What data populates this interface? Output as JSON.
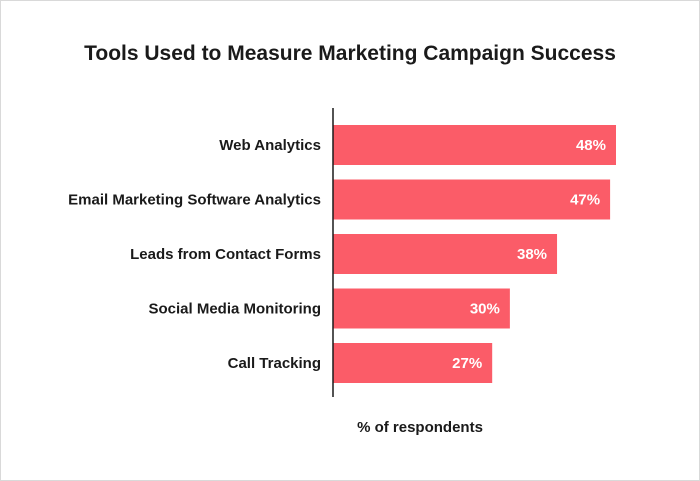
{
  "chart_data": {
    "type": "bar",
    "orientation": "horizontal",
    "title": "Tools Used to Measure Marketing Campaign Success",
    "xlabel": "% of respondents",
    "ylabel": "",
    "categories": [
      "Web Analytics",
      "Email Marketing Software Analytics",
      "Leads from Contact Forms",
      "Social Media Monitoring",
      "Call Tracking"
    ],
    "values": [
      48,
      47,
      38,
      30,
      27
    ],
    "value_labels": [
      "48%",
      "47%",
      "38%",
      "30%",
      "27%"
    ],
    "value_unit": "%",
    "xlim": [
      0,
      100
    ],
    "grid": false,
    "legend": "none",
    "bar_color": "#fb5c68",
    "axis_color": "#1a1a1a"
  }
}
